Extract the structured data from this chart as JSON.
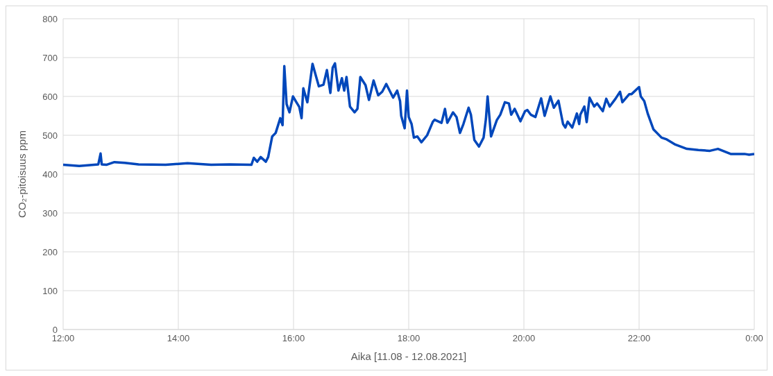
{
  "chart_data": {
    "type": "line",
    "xlabel": "Aika [11.08 - 12.08.2021]",
    "ylabel": "CO₂-pitoisuus ppm",
    "x": [
      12.0,
      12.28,
      12.61,
      12.65,
      12.67,
      12.75,
      12.89,
      13.07,
      13.31,
      13.78,
      14.16,
      14.57,
      14.89,
      15.27,
      15.31,
      15.37,
      15.43,
      15.52,
      15.56,
      15.63,
      15.69,
      15.77,
      15.81,
      15.84,
      15.88,
      15.93,
      15.99,
      16.05,
      16.1,
      16.14,
      16.17,
      16.24,
      16.33,
      16.4,
      16.44,
      16.52,
      16.58,
      16.64,
      16.68,
      16.72,
      16.78,
      16.84,
      16.88,
      16.92,
      16.98,
      17.06,
      17.11,
      17.16,
      17.25,
      17.31,
      17.39,
      17.47,
      17.54,
      17.61,
      17.73,
      17.8,
      17.85,
      17.87,
      17.93,
      17.97,
      18.0,
      18.05,
      18.09,
      18.15,
      18.22,
      18.32,
      18.42,
      18.45,
      18.57,
      18.63,
      18.67,
      18.77,
      18.83,
      18.89,
      18.95,
      19.04,
      19.08,
      19.14,
      19.22,
      19.3,
      19.34,
      19.37,
      19.43,
      19.53,
      19.59,
      19.67,
      19.74,
      19.78,
      19.84,
      19.94,
      20.02,
      20.06,
      20.12,
      20.2,
      20.3,
      20.36,
      20.46,
      20.52,
      20.6,
      20.68,
      20.72,
      20.76,
      20.84,
      20.92,
      20.96,
      20.98,
      21.05,
      21.09,
      21.14,
      21.22,
      21.27,
      21.37,
      21.43,
      21.49,
      21.59,
      21.67,
      21.71,
      21.83,
      21.87,
      22.0,
      22.03,
      22.09,
      22.15,
      22.25,
      22.39,
      22.47,
      22.63,
      22.83,
      23.03,
      23.23,
      23.37,
      23.59,
      23.83,
      23.91,
      24.0
    ],
    "series": [
      {
        "color": "#0047bb",
        "values": [
          424,
          421,
          425,
          453,
          425,
          424,
          431,
          429,
          425,
          424,
          428,
          424,
          425,
          424,
          442,
          432,
          444,
          432,
          444,
          497,
          506,
          544,
          526,
          678,
          580,
          559,
          600,
          585,
          573,
          544,
          621,
          585,
          684,
          647,
          626,
          630,
          668,
          609,
          674,
          685,
          615,
          647,
          615,
          650,
          574,
          559,
          568,
          650,
          629,
          591,
          641,
          603,
          612,
          632,
          597,
          615,
          588,
          550,
          518,
          615,
          547,
          529,
          494,
          497,
          482,
          500,
          535,
          540,
          532,
          568,
          532,
          559,
          547,
          506,
          529,
          571,
          553,
          488,
          471,
          494,
          541,
          600,
          497,
          539,
          553,
          585,
          582,
          553,
          568,
          536,
          562,
          565,
          553,
          547,
          595,
          550,
          600,
          571,
          589,
          529,
          520,
          535,
          520,
          556,
          529,
          553,
          574,
          534,
          597,
          574,
          582,
          562,
          594,
          574,
          594,
          612,
          585,
          606,
          606,
          624,
          600,
          588,
          556,
          515,
          494,
          490,
          476,
          465,
          462,
          460,
          465,
          452,
          452,
          450,
          452
        ]
      }
    ],
    "xlim": [
      12,
      24
    ],
    "xticks": [
      {
        "value": 12,
        "label": "12:00"
      },
      {
        "value": 14,
        "label": "14:00"
      },
      {
        "value": 16,
        "label": "16:00"
      },
      {
        "value": 18,
        "label": "18:00"
      },
      {
        "value": 20,
        "label": "20:00"
      },
      {
        "value": 22,
        "label": "22:00"
      },
      {
        "value": 24,
        "label": "0:00"
      }
    ],
    "ylim": [
      0,
      800
    ],
    "yticks": [
      0,
      100,
      200,
      300,
      400,
      500,
      600,
      700,
      800
    ],
    "grid": true,
    "marker": "none",
    "line_style": "solid"
  }
}
